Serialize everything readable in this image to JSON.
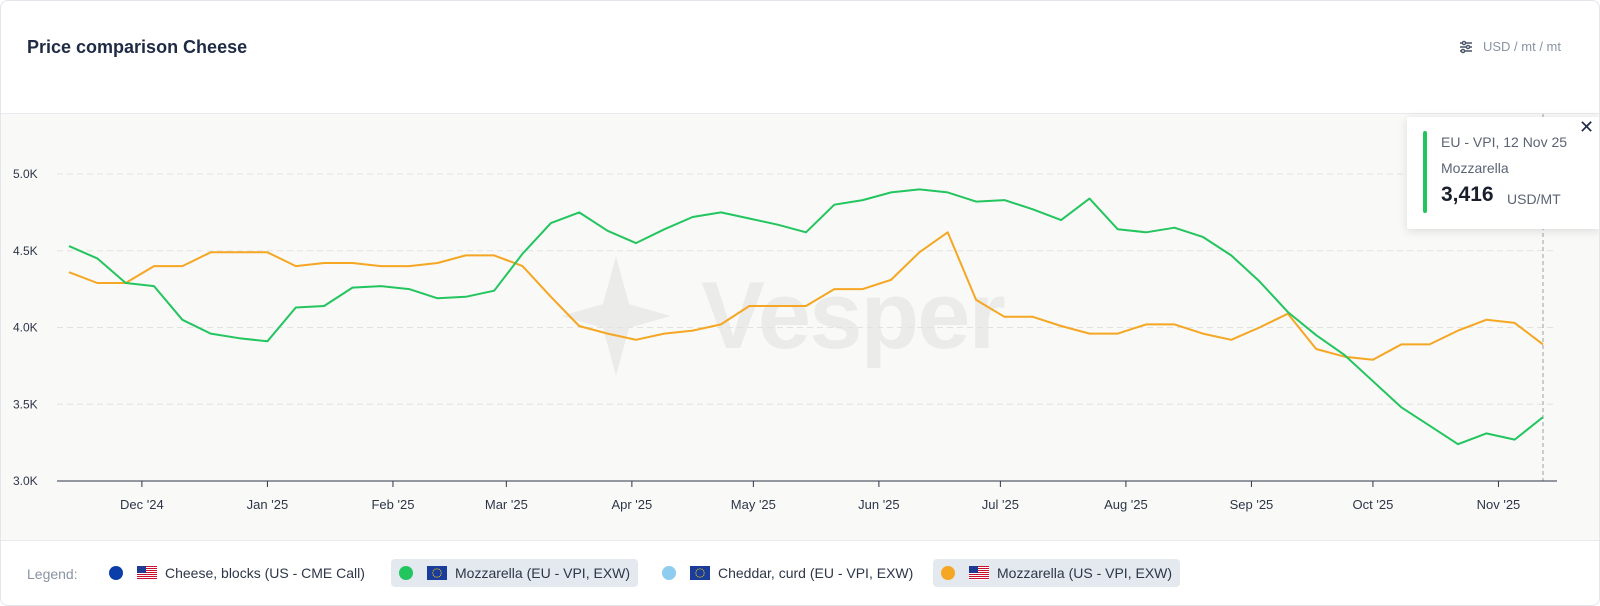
{
  "header": {
    "title": "Price comparison Cheese",
    "units_label": "USD / mt / mt"
  },
  "tooltip": {
    "series_line": "EU - VPI, 12 Nov 25",
    "product": "Mozzarella",
    "value": "3,416",
    "unit": "USD/MT",
    "color": "#22c55e"
  },
  "legend": {
    "label": "Legend:",
    "items": [
      {
        "label": "Cheese, blocks (US - CME Call)",
        "color": "#0b3ea8",
        "flag": "us",
        "active": false
      },
      {
        "label": "Mozzarella (EU - VPI, EXW)",
        "color": "#22c55e",
        "flag": "eu",
        "active": true
      },
      {
        "label": "Cheddar, curd (EU - VPI, EXW)",
        "color": "#8ecdf0",
        "flag": "eu",
        "active": false
      },
      {
        "label": "Mozzarella (US - VPI, EXW)",
        "color": "#f5a623",
        "flag": "us",
        "active": true
      }
    ]
  },
  "watermark": "Vesper",
  "chart_data": {
    "type": "line",
    "x_tick_labels": [
      "Dec '24",
      "Jan '25",
      "Feb '25",
      "Mar '25",
      "Apr '25",
      "May '25",
      "Jun '25",
      "Jul '25",
      "Aug '25",
      "Sep '25",
      "Oct '25",
      "Nov '25"
    ],
    "y_tick_labels": [
      "3.0K",
      "3.5K",
      "4.0K",
      "4.5K",
      "5.0K"
    ],
    "ylim": [
      3000,
      5000
    ],
    "grid": "horizontal dashed",
    "x": [
      "2024-11-13",
      "2024-11-20",
      "2024-11-27",
      "2024-12-04",
      "2024-12-11",
      "2024-12-18",
      "2024-12-25",
      "2025-01-01",
      "2025-01-08",
      "2025-01-15",
      "2025-01-22",
      "2025-01-29",
      "2025-02-05",
      "2025-02-12",
      "2025-02-19",
      "2025-02-26",
      "2025-03-05",
      "2025-03-12",
      "2025-03-19",
      "2025-03-26",
      "2025-04-02",
      "2025-04-09",
      "2025-04-16",
      "2025-04-23",
      "2025-04-30",
      "2025-05-07",
      "2025-05-14",
      "2025-05-21",
      "2025-05-28",
      "2025-06-04",
      "2025-06-11",
      "2025-06-18",
      "2025-06-25",
      "2025-07-02",
      "2025-07-09",
      "2025-07-16",
      "2025-07-23",
      "2025-07-30",
      "2025-08-06",
      "2025-08-13",
      "2025-08-20",
      "2025-08-27",
      "2025-09-03",
      "2025-09-10",
      "2025-09-17",
      "2025-09-24",
      "2025-10-01",
      "2025-10-08",
      "2025-10-15",
      "2025-10-22",
      "2025-10-29",
      "2025-11-05",
      "2025-11-12"
    ],
    "series": [
      {
        "name": "Mozzarella (EU - VPI, EXW)",
        "color": "#22c55e",
        "values": [
          4530,
          4450,
          4290,
          4270,
          4050,
          3960,
          3930,
          3910,
          4130,
          4140,
          4260,
          4270,
          4250,
          4190,
          4200,
          4240,
          4480,
          4680,
          4750,
          4630,
          4550,
          4640,
          4720,
          4750,
          4710,
          4670,
          4620,
          4800,
          4830,
          4880,
          4900,
          4880,
          4820,
          4830,
          4770,
          4700,
          4840,
          4640,
          4620,
          4650,
          4590,
          4470,
          4300,
          4100,
          3950,
          3820,
          3650,
          3480,
          3360,
          3240,
          3310,
          3270,
          3416
        ]
      },
      {
        "name": "Mozzarella (US - VPI, EXW)",
        "color": "#f5a623",
        "values": [
          4360,
          4290,
          4290,
          4400,
          4400,
          4490,
          4490,
          4490,
          4400,
          4420,
          4420,
          4400,
          4400,
          4420,
          4470,
          4470,
          4400,
          4200,
          4010,
          3960,
          3920,
          3960,
          3980,
          4020,
          4140,
          4140,
          4140,
          4250,
          4250,
          4310,
          4490,
          4620,
          4180,
          4070,
          4070,
          4010,
          3960,
          3960,
          4020,
          4020,
          3960,
          3920,
          4000,
          4090,
          3860,
          3810,
          3790,
          3890,
          3890,
          3980,
          4050,
          4030,
          3890
        ]
      }
    ]
  }
}
